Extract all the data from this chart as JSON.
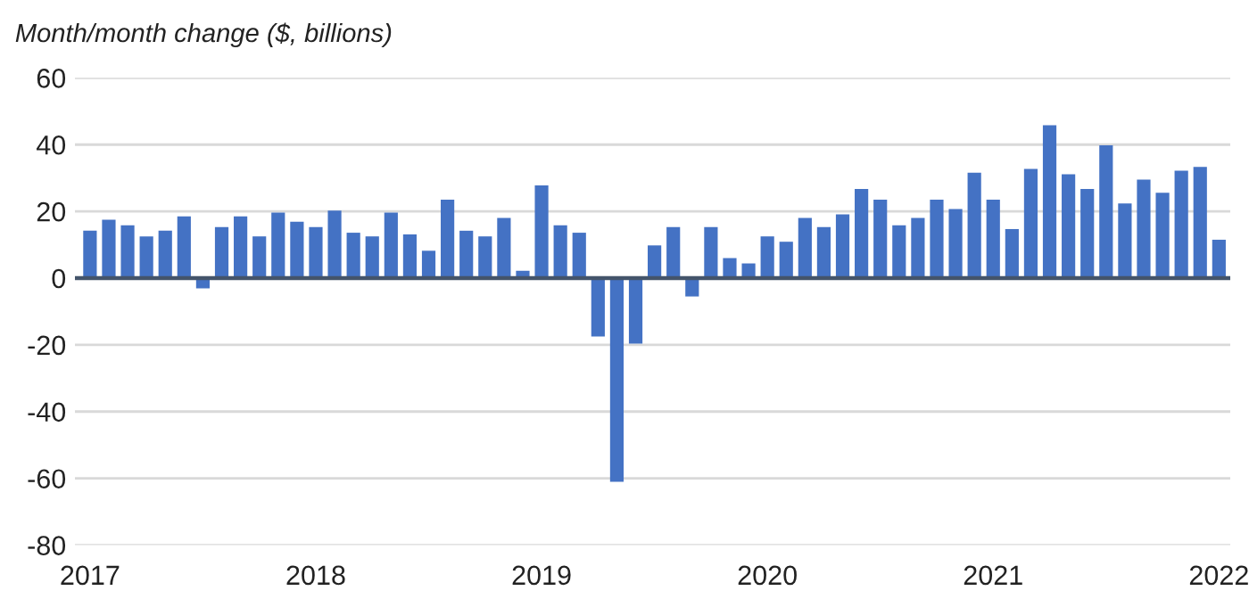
{
  "chart_data": {
    "type": "bar",
    "ylabel": "Month/month change ($, billions)",
    "categories": [
      "2017",
      null,
      null,
      null,
      null,
      null,
      null,
      null,
      null,
      null,
      null,
      null,
      "2018",
      null,
      null,
      null,
      null,
      null,
      null,
      null,
      null,
      null,
      null,
      null,
      "2019",
      null,
      null,
      null,
      null,
      null,
      null,
      null,
      null,
      null,
      null,
      null,
      "2020",
      null,
      null,
      null,
      null,
      null,
      null,
      null,
      null,
      null,
      null,
      null,
      "2021",
      null,
      null,
      null,
      null,
      null,
      null,
      null,
      null,
      null,
      null,
      null,
      "2022"
    ],
    "series": [
      {
        "color": "#4472c4",
        "values": [
          14.2,
          17.5,
          15.8,
          12.5,
          14.2,
          18.5,
          -3.1,
          15.3,
          18.5,
          12.5,
          19.6,
          16.9,
          15.3,
          20.2,
          13.6,
          12.5,
          19.6,
          13.1,
          8.2,
          23.5,
          14.2,
          12.5,
          18,
          2.2,
          27.8,
          15.8,
          13.6,
          -17.5,
          -61,
          -19.6,
          9.8,
          15.3,
          -5.5,
          15.3,
          6,
          4.4,
          12.5,
          10.9,
          18,
          15.3,
          19.1,
          26.7,
          23.5,
          15.8,
          18,
          23.5,
          20.7,
          31.6,
          23.5,
          14.7,
          32.7,
          45.8,
          31.1,
          26.7,
          39.8,
          22.4,
          29.5,
          25.6,
          32.2,
          33.3,
          11.5
        ]
      }
    ],
    "ylim": [
      -80,
      60
    ],
    "yticks": [
      -80,
      -60,
      -40,
      -20,
      0,
      20,
      40,
      60
    ],
    "grid": "y",
    "ref_lines": [
      {
        "axis": "y",
        "value": 0,
        "color": "#44546a"
      }
    ]
  }
}
